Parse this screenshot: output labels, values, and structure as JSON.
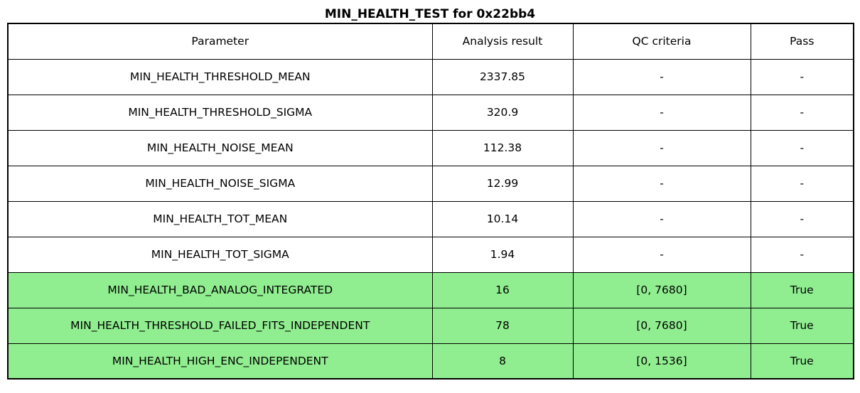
{
  "title": "MIN_HEALTH_TEST for 0x22bb4",
  "colors": {
    "pass_row_bg": "#90EE90",
    "border": "#000000",
    "background": "#FFFFFF",
    "text": "#000000"
  },
  "chart_data": {
    "type": "table",
    "title": "MIN_HEALTH_TEST for 0x22bb4",
    "columns": [
      "Parameter",
      "Analysis result",
      "QC criteria",
      "Pass"
    ],
    "rows": [
      {
        "parameter": "MIN_HEALTH_THRESHOLD_MEAN",
        "analysis_result": "2337.85",
        "qc_criteria": "-",
        "pass": "-",
        "highlighted": false
      },
      {
        "parameter": "MIN_HEALTH_THRESHOLD_SIGMA",
        "analysis_result": "320.9",
        "qc_criteria": "-",
        "pass": "-",
        "highlighted": false
      },
      {
        "parameter": "MIN_HEALTH_NOISE_MEAN",
        "analysis_result": "112.38",
        "qc_criteria": "-",
        "pass": "-",
        "highlighted": false
      },
      {
        "parameter": "MIN_HEALTH_NOISE_SIGMA",
        "analysis_result": "12.99",
        "qc_criteria": "-",
        "pass": "-",
        "highlighted": false
      },
      {
        "parameter": "MIN_HEALTH_TOT_MEAN",
        "analysis_result": "10.14",
        "qc_criteria": "-",
        "pass": "-",
        "highlighted": false
      },
      {
        "parameter": "MIN_HEALTH_TOT_SIGMA",
        "analysis_result": "1.94",
        "qc_criteria": "-",
        "pass": "-",
        "highlighted": false
      },
      {
        "parameter": "MIN_HEALTH_BAD_ANALOG_INTEGRATED",
        "analysis_result": "16",
        "qc_criteria": "[0, 7680]",
        "pass": "True",
        "highlighted": true
      },
      {
        "parameter": "MIN_HEALTH_THRESHOLD_FAILED_FITS_INDEPENDENT",
        "analysis_result": "78",
        "qc_criteria": "[0, 7680]",
        "pass": "True",
        "highlighted": true
      },
      {
        "parameter": "MIN_HEALTH_HIGH_ENC_INDEPENDENT",
        "analysis_result": "8",
        "qc_criteria": "[0, 1536]",
        "pass": "True",
        "highlighted": true
      }
    ],
    "highlight_color": "#90EE90",
    "layout": {
      "grid": true,
      "header_row": true,
      "title_position": "top-center"
    }
  }
}
